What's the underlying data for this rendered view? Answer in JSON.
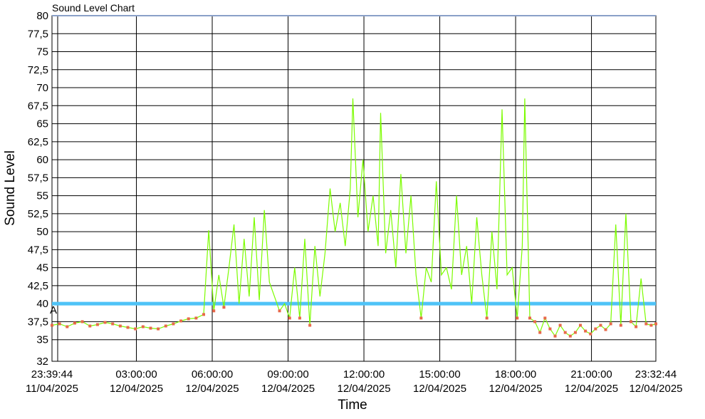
{
  "chart_data": {
    "type": "line",
    "title": "Sound Level Chart",
    "xlabel": "Time",
    "ylabel": "Sound Level",
    "ylim": [
      32,
      80
    ],
    "yticks": [
      "32",
      "35",
      "37,5",
      "40",
      "42,5",
      "45",
      "47,5",
      "50",
      "52,5",
      "55",
      "57,5",
      "60",
      "62,5",
      "65",
      "67,5",
      "70",
      "72,5",
      "75",
      "77,5",
      "80"
    ],
    "ytick_values": [
      32,
      35,
      37.5,
      40,
      42.5,
      45,
      47.5,
      50,
      52.5,
      55,
      57.5,
      60,
      62.5,
      65,
      67.5,
      70,
      72.5,
      75,
      77.5,
      80
    ],
    "xlim_hours": [
      0,
      23.885
    ],
    "xticks": [
      {
        "time": "23:39:44",
        "date": "11/04/2025"
      },
      {
        "time": "03:00:00",
        "date": "12/04/2025"
      },
      {
        "time": "06:00:00",
        "date": "12/04/2025"
      },
      {
        "time": "09:00:00",
        "date": "12/04/2025"
      },
      {
        "time": "12:00:00",
        "date": "12/04/2025"
      },
      {
        "time": "15:00:00",
        "date": "12/04/2025"
      },
      {
        "time": "18:00:00",
        "date": "12/04/2025"
      },
      {
        "time": "21:00:00",
        "date": "12/04/2025"
      },
      {
        "time": "23:32:44",
        "date": "12/04/2025"
      }
    ],
    "grid": true,
    "threshold": {
      "label": "A",
      "value": 40,
      "color": "#4fc3f7"
    },
    "colors": {
      "line": "#7cfc00",
      "marker": "#e8694a",
      "threshold": "#4fc3f7"
    },
    "series": [
      {
        "type": "line",
        "points": [
          [
            0.0,
            37.0
          ],
          [
            0.3,
            37.2
          ],
          [
            0.6,
            36.8
          ],
          [
            0.9,
            37.3
          ],
          [
            1.2,
            37.5
          ],
          [
            1.5,
            36.9
          ],
          [
            1.8,
            37.1
          ],
          [
            2.1,
            37.4
          ],
          [
            2.4,
            37.2
          ],
          [
            2.7,
            36.9
          ],
          [
            3.0,
            36.7
          ],
          [
            3.3,
            36.5
          ],
          [
            3.6,
            36.8
          ],
          [
            3.9,
            36.6
          ],
          [
            4.2,
            36.5
          ],
          [
            4.5,
            36.9
          ],
          [
            4.8,
            37.2
          ],
          [
            5.1,
            37.6
          ],
          [
            5.4,
            37.9
          ],
          [
            5.7,
            38.0
          ],
          [
            6.0,
            38.5
          ],
          [
            6.2,
            50.2
          ],
          [
            6.4,
            39.0
          ],
          [
            6.6,
            44.0
          ],
          [
            6.8,
            39.5
          ],
          [
            7.0,
            45.0
          ],
          [
            7.2,
            51.0
          ],
          [
            7.4,
            40.0
          ],
          [
            7.6,
            49.0
          ],
          [
            7.8,
            41.0
          ],
          [
            8.0,
            52.0
          ],
          [
            8.2,
            40.5
          ],
          [
            8.4,
            53.0
          ],
          [
            8.6,
            43.0
          ],
          [
            8.8,
            41.0
          ],
          [
            9.0,
            39.0
          ],
          [
            9.2,
            40.0
          ],
          [
            9.4,
            38.0
          ],
          [
            9.6,
            45.0
          ],
          [
            9.8,
            38.0
          ],
          [
            10.0,
            49.0
          ],
          [
            10.2,
            37.0
          ],
          [
            10.4,
            48.0
          ],
          [
            10.6,
            41.0
          ],
          [
            10.8,
            47.0
          ],
          [
            11.0,
            56.0
          ],
          [
            11.2,
            50.0
          ],
          [
            11.4,
            54.0
          ],
          [
            11.6,
            48.0
          ],
          [
            11.8,
            56.0
          ],
          [
            11.9,
            68.5
          ],
          [
            12.1,
            52.0
          ],
          [
            12.3,
            60.0
          ],
          [
            12.5,
            50.0
          ],
          [
            12.7,
            55.0
          ],
          [
            12.9,
            48.0
          ],
          [
            13.0,
            66.5
          ],
          [
            13.2,
            47.0
          ],
          [
            13.4,
            53.0
          ],
          [
            13.6,
            45.0
          ],
          [
            13.8,
            58.0
          ],
          [
            14.0,
            47.0
          ],
          [
            14.2,
            55.0
          ],
          [
            14.4,
            44.0
          ],
          [
            14.6,
            38.0
          ],
          [
            14.8,
            45.0
          ],
          [
            15.0,
            43.0
          ],
          [
            15.2,
            57.0
          ],
          [
            15.4,
            44.0
          ],
          [
            15.6,
            45.0
          ],
          [
            15.8,
            42.0
          ],
          [
            16.0,
            55.0
          ],
          [
            16.2,
            44.0
          ],
          [
            16.4,
            48.0
          ],
          [
            16.6,
            40.0
          ],
          [
            16.8,
            52.0
          ],
          [
            17.0,
            44.0
          ],
          [
            17.2,
            38.0
          ],
          [
            17.4,
            50.0
          ],
          [
            17.6,
            42.0
          ],
          [
            17.8,
            67.0
          ],
          [
            18.0,
            44.0
          ],
          [
            18.2,
            45.0
          ],
          [
            18.4,
            38.0
          ],
          [
            18.6,
            48.0
          ],
          [
            18.7,
            68.5
          ],
          [
            18.9,
            38.0
          ],
          [
            19.1,
            37.5
          ],
          [
            19.3,
            36.0
          ],
          [
            19.5,
            38.0
          ],
          [
            19.7,
            36.5
          ],
          [
            19.9,
            35.5
          ],
          [
            20.1,
            37.0
          ],
          [
            20.3,
            36.0
          ],
          [
            20.5,
            35.5
          ],
          [
            20.7,
            36.0
          ],
          [
            20.9,
            37.0
          ],
          [
            21.1,
            36.2
          ],
          [
            21.3,
            35.8
          ],
          [
            21.5,
            36.5
          ],
          [
            21.7,
            37.0
          ],
          [
            21.9,
            36.4
          ],
          [
            22.1,
            37.2
          ],
          [
            22.3,
            51.0
          ],
          [
            22.5,
            37.0
          ],
          [
            22.7,
            52.5
          ],
          [
            22.9,
            37.5
          ],
          [
            23.1,
            36.8
          ],
          [
            23.3,
            43.5
          ],
          [
            23.5,
            37.2
          ],
          [
            23.7,
            37.0
          ],
          [
            23.885,
            37.2
          ]
        ]
      }
    ]
  }
}
